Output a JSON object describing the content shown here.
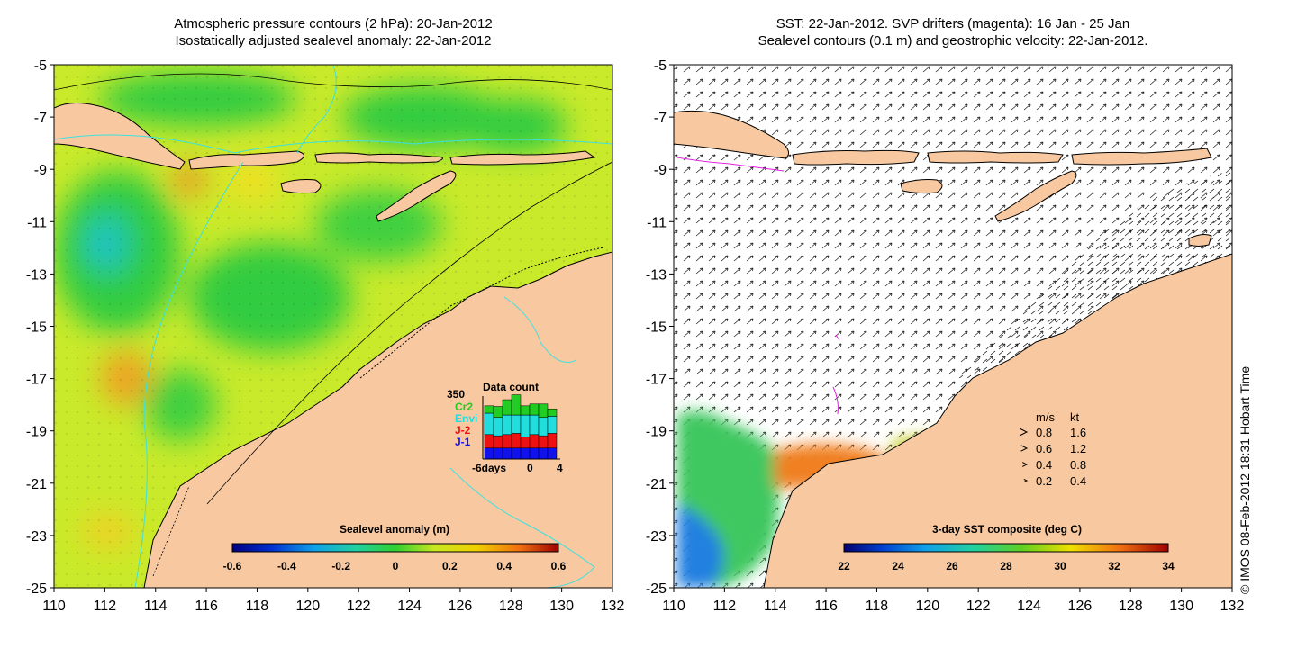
{
  "left_panel": {
    "title_line1": "Atmospheric pressure contours (2 hPa): 20-Jan-2012",
    "title_line2": "Isostatically adjusted sealevel anomaly: 22-Jan-2012",
    "colorbar": {
      "label": "Sealevel anomaly (m)",
      "ticks": [
        "-0.6",
        "-0.4",
        "-0.2",
        "0",
        "0.2",
        "0.4",
        "0.6"
      ]
    },
    "data_count": {
      "title": "Data count",
      "max_label": "350",
      "legend": [
        {
          "name": "Cr2",
          "color": "#22cc22"
        },
        {
          "name": "Envi",
          "color": "#22dddd"
        },
        {
          "name": "J-2",
          "color": "#ee1111"
        },
        {
          "name": "J-1",
          "color": "#1111ee"
        }
      ],
      "x_labels": [
        "-6days",
        "0",
        "4"
      ],
      "bars": [
        {
          "blue": 0.18,
          "red": 0.22,
          "cyan": 0.35,
          "green": 0.12
        },
        {
          "blue": 0.18,
          "red": 0.2,
          "cyan": 0.3,
          "green": 0.18
        },
        {
          "blue": 0.18,
          "red": 0.22,
          "cyan": 0.32,
          "green": 0.25
        },
        {
          "blue": 0.18,
          "red": 0.24,
          "cyan": 0.3,
          "green": 0.33
        },
        {
          "blue": 0.18,
          "red": 0.18,
          "cyan": 0.36,
          "green": 0.15
        },
        {
          "blue": 0.18,
          "red": 0.22,
          "cyan": 0.32,
          "green": 0.18
        },
        {
          "blue": 0.18,
          "red": 0.2,
          "cyan": 0.3,
          "green": 0.22
        },
        {
          "blue": 0.18,
          "red": 0.24,
          "cyan": 0.28,
          "green": 0.12
        }
      ]
    }
  },
  "right_panel": {
    "title_line1": "SST: 22-Jan-2012. SVP drifters (magenta): 16 Jan - 25 Jan",
    "title_line2": "Sealevel contours (0.1 m) and geostrophic velocity: 22-Jan-2012.",
    "colorbar": {
      "label": "3-day SST composite (deg C)",
      "ticks": [
        "22",
        "24",
        "26",
        "28",
        "30",
        "32",
        "34"
      ]
    },
    "velocity_legend": {
      "header_ms": "m/s",
      "header_kt": "kt",
      "rows": [
        {
          "ms": "0.8",
          "kt": "1.6"
        },
        {
          "ms": "0.6",
          "kt": "1.2"
        },
        {
          "ms": "0.4",
          "kt": "0.8"
        },
        {
          "ms": "0.2",
          "kt": "0.4"
        }
      ]
    }
  },
  "axes": {
    "lon_labels": [
      "110",
      "112",
      "114",
      "116",
      "118",
      "120",
      "122",
      "124",
      "126",
      "128",
      "130",
      "132"
    ],
    "lat_labels": [
      "-5",
      "-7",
      "-9",
      "-11",
      "-13",
      "-15",
      "-17",
      "-19",
      "-21",
      "-23",
      "-25"
    ]
  },
  "credit": "© IMOS 08-Feb-2012 18:31 Hobart Time",
  "colors": {
    "land": "#f8c9a0",
    "coast": "#000000",
    "cyan_contour": "#3ee0e0"
  }
}
